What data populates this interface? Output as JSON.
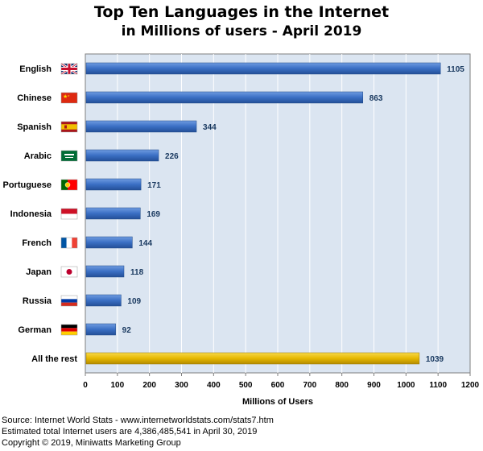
{
  "title_line1": "Top Ten Languages in the Internet",
  "title_line2": "in Millions of users - April 2019",
  "footer": {
    "source": "Source: Internet World Stats - www.internetworldstats.com/stats7.htm",
    "estimate": "Estimated total Internet users are 4,386,485,541 in April 30, 2019",
    "copyright": "Copyright ©  2019, Miniwatts Marketing Group"
  },
  "colors": {
    "plot_bg": "#dbe5f1",
    "bar_blue": "#3a6fc4",
    "bar_gold": "#e6b800",
    "value_text": "#17375e"
  },
  "chart_data": {
    "type": "bar",
    "orientation": "horizontal",
    "title": "Top Ten Languages in the Internet in Millions of users - April 2019",
    "xlabel": "Millions of Users",
    "ylabel": "",
    "xlim": [
      0,
      1200
    ],
    "xticks": [
      0,
      100,
      200,
      300,
      400,
      500,
      600,
      700,
      800,
      900,
      1000,
      1100,
      1200
    ],
    "grid": true,
    "categories": [
      "English",
      "Chinese",
      "Spanish",
      "Arabic",
      "Portuguese",
      "Indonesia",
      "French",
      "Japan",
      "Russia",
      "German",
      "All the rest"
    ],
    "flags": [
      "uk-flag-icon",
      "china-flag-icon",
      "spain-flag-icon",
      "saudi-flag-icon",
      "portugal-flag-icon",
      "indonesia-flag-icon",
      "france-flag-icon",
      "japan-flag-icon",
      "russia-flag-icon",
      "germany-flag-icon",
      ""
    ],
    "values": [
      1105,
      863,
      344,
      226,
      171,
      169,
      144,
      118,
      109,
      92,
      1039
    ]
  }
}
